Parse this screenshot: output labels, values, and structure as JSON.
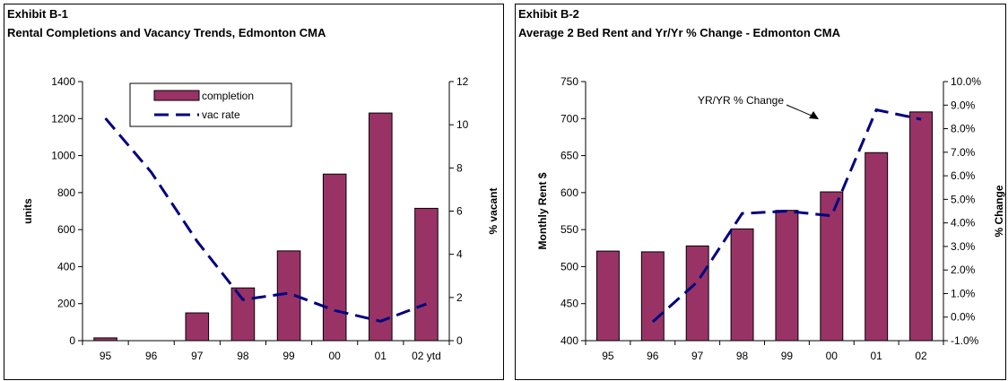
{
  "chart_data": [
    {
      "type": "bar",
      "exhibit": "Exhibit B-1",
      "title": "Rental Completions and Vacancy Trends, Edmonton CMA",
      "categories": [
        "95",
        "96",
        "97",
        "98",
        "99",
        "00",
        "01",
        "02 ytd"
      ],
      "series": [
        {
          "name": "completion",
          "type": "bar",
          "axis": "left",
          "color": "#993366",
          "values": [
            15,
            0,
            150,
            285,
            485,
            900,
            1230,
            715
          ]
        },
        {
          "name": "vac rate",
          "type": "line",
          "axis": "right",
          "color": "#000080",
          "dash": "dashed",
          "values": [
            10.3,
            7.8,
            4.6,
            1.9,
            2.2,
            1.4,
            0.9,
            1.7
          ]
        }
      ],
      "ylabel": "units",
      "y2label": "% vacant",
      "ylim": [
        0,
        1400
      ],
      "yticks": [
        "0",
        "200",
        "400",
        "600",
        "800",
        "1000",
        "1200",
        "1400"
      ],
      "y2lim": [
        0,
        12
      ],
      "y2ticks": [
        "0",
        "2",
        "4",
        "6",
        "8",
        "10",
        "12"
      ],
      "legend": "top-center"
    },
    {
      "type": "bar",
      "exhibit": "Exhibit B-2",
      "title": "Average 2 Bed Rent and Yr/Yr % Change - Edmonton CMA",
      "categories": [
        "95",
        "96",
        "97",
        "98",
        "99",
        "00",
        "01",
        "02"
      ],
      "series": [
        {
          "name": "Monthly Rent $",
          "type": "bar",
          "axis": "left",
          "color": "#993366",
          "values": [
            521,
            520,
            528,
            551,
            576,
            601,
            654,
            709
          ]
        },
        {
          "name": "YR/YR % Change",
          "type": "line",
          "axis": "right",
          "color": "#000080",
          "dash": "dashed",
          "values": [
            null,
            -0.2,
            1.5,
            4.4,
            4.5,
            4.3,
            8.8,
            8.4
          ]
        }
      ],
      "ylabel": "Monthly Rent $",
      "y2label": "% Change",
      "ylim": [
        400,
        750
      ],
      "yticks": [
        "400",
        "450",
        "500",
        "550",
        "600",
        "650",
        "700",
        "750"
      ],
      "y2lim": [
        -1,
        10
      ],
      "y2ticks": [
        "-1.0%",
        "0.0%",
        "1.0%",
        "2.0%",
        "3.0%",
        "4.0%",
        "5.0%",
        "6.0%",
        "7.0%",
        "8.0%",
        "9.0%",
        "10.0%"
      ],
      "annotation": "YR/YR % Change"
    }
  ]
}
